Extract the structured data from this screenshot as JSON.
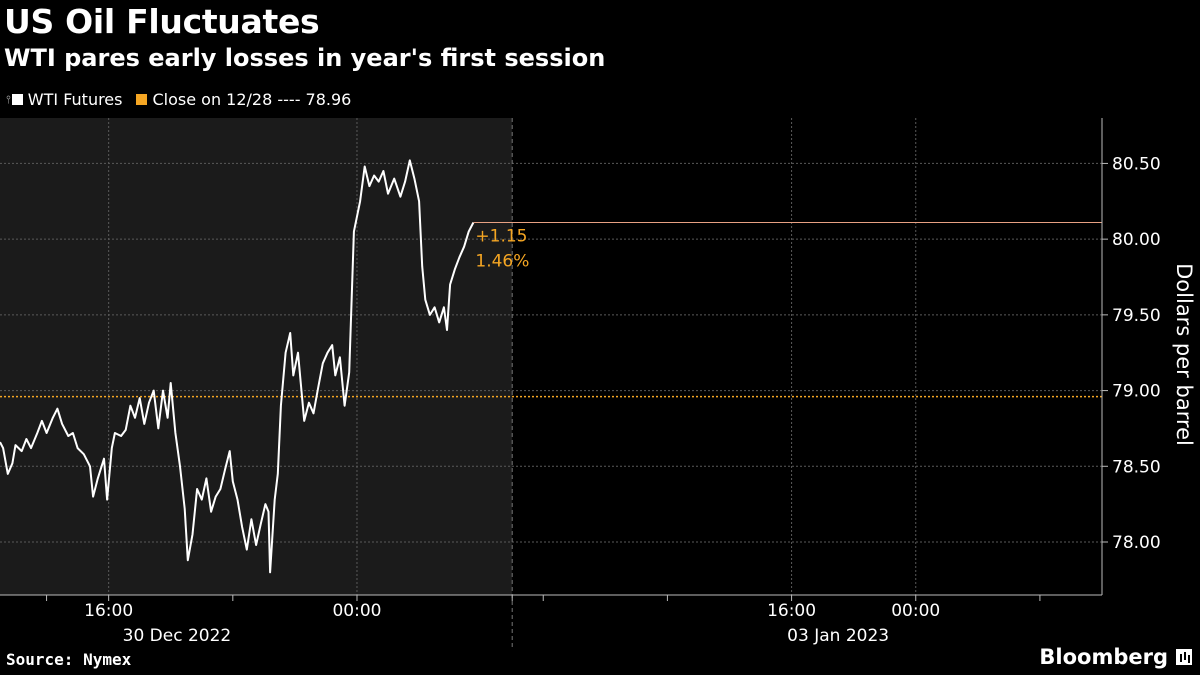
{
  "title": "US Oil Fluctuates",
  "subtitle": "WTI pares early losses in year's first session",
  "legend": {
    "series_label": "WTI Futures",
    "close_label": "Close on 12/28 ---- 78.96",
    "series_color": "#ffffff",
    "close_color": "#f5a623"
  },
  "footer": {
    "source": "Source: Nymex",
    "brand": "Bloomberg"
  },
  "chart_data": {
    "type": "line",
    "ylabel": "Dollars per barrel",
    "ylim": [
      77.65,
      80.8
    ],
    "y_ticks": [
      78.0,
      78.5,
      79.0,
      79.5,
      80.0,
      80.5
    ],
    "y_tick_labels": [
      "78.00",
      "78.50",
      "79.00",
      "79.50",
      "80.00",
      "80.50"
    ],
    "x_ticks": [
      {
        "t": 14,
        "label": ""
      },
      {
        "t": 16,
        "label": "16:00"
      },
      {
        "t": 20,
        "label": ""
      },
      {
        "t": 24,
        "label": "00:00"
      },
      {
        "t": 29,
        "label": ""
      },
      {
        "t": 30,
        "label": ""
      },
      {
        "t": 34,
        "label": ""
      },
      {
        "t": 38,
        "label": "16:00"
      },
      {
        "t": 42,
        "label": "00:00"
      },
      {
        "t": 46,
        "label": ""
      }
    ],
    "date_labels": [
      {
        "t": 18.2,
        "label": "30 Dec 2022"
      },
      {
        "t": 39.5,
        "label": "03 Jan 2023"
      }
    ],
    "shaded_range": [
      12.5,
      29
    ],
    "session_break": 29,
    "xlim": [
      12.5,
      48
    ],
    "reference_line": {
      "value": 78.96,
      "label": "Close on 12/28",
      "color": "#f5a623"
    },
    "last_value_line": {
      "value": 80.11,
      "color": "#e8a183"
    },
    "annotation": {
      "change": "+1.15",
      "percent": "1.46%",
      "color": "#f5a623"
    },
    "series": [
      {
        "name": "WTI Futures",
        "color": "#ffffff",
        "points": [
          [
            12.5,
            78.66
          ],
          [
            12.6,
            78.62
          ],
          [
            12.75,
            78.45
          ],
          [
            12.9,
            78.52
          ],
          [
            13.0,
            78.64
          ],
          [
            13.2,
            78.6
          ],
          [
            13.35,
            78.68
          ],
          [
            13.5,
            78.62
          ],
          [
            13.7,
            78.72
          ],
          [
            13.85,
            78.8
          ],
          [
            14.0,
            78.72
          ],
          [
            14.2,
            78.82
          ],
          [
            14.35,
            78.88
          ],
          [
            14.5,
            78.78
          ],
          [
            14.7,
            78.7
          ],
          [
            14.85,
            78.72
          ],
          [
            15.0,
            78.62
          ],
          [
            15.2,
            78.58
          ],
          [
            15.4,
            78.5
          ],
          [
            15.5,
            78.3
          ],
          [
            15.65,
            78.42
          ],
          [
            15.85,
            78.55
          ],
          [
            15.95,
            78.28
          ],
          [
            16.1,
            78.62
          ],
          [
            16.2,
            78.72
          ],
          [
            16.4,
            78.7
          ],
          [
            16.55,
            78.74
          ],
          [
            16.7,
            78.9
          ],
          [
            16.85,
            78.82
          ],
          [
            17.0,
            78.95
          ],
          [
            17.15,
            78.78
          ],
          [
            17.3,
            78.92
          ],
          [
            17.45,
            79.0
          ],
          [
            17.6,
            78.75
          ],
          [
            17.75,
            79.0
          ],
          [
            17.9,
            78.82
          ],
          [
            18.0,
            79.05
          ],
          [
            18.15,
            78.72
          ],
          [
            18.3,
            78.5
          ],
          [
            18.45,
            78.22
          ],
          [
            18.55,
            77.88
          ],
          [
            18.7,
            78.05
          ],
          [
            18.85,
            78.35
          ],
          [
            19.0,
            78.28
          ],
          [
            19.15,
            78.42
          ],
          [
            19.3,
            78.2
          ],
          [
            19.45,
            78.3
          ],
          [
            19.6,
            78.35
          ],
          [
            19.75,
            78.48
          ],
          [
            19.9,
            78.6
          ],
          [
            20.0,
            78.4
          ],
          [
            20.15,
            78.28
          ],
          [
            20.3,
            78.1
          ],
          [
            20.45,
            77.95
          ],
          [
            20.6,
            78.15
          ],
          [
            20.75,
            77.98
          ],
          [
            20.9,
            78.12
          ],
          [
            21.05,
            78.25
          ],
          [
            21.15,
            78.2
          ],
          [
            21.2,
            77.8
          ],
          [
            21.35,
            78.28
          ],
          [
            21.45,
            78.45
          ],
          [
            21.55,
            78.9
          ],
          [
            21.7,
            79.25
          ],
          [
            21.85,
            79.38
          ],
          [
            21.95,
            79.1
          ],
          [
            22.1,
            79.25
          ],
          [
            22.3,
            78.8
          ],
          [
            22.45,
            78.92
          ],
          [
            22.6,
            78.85
          ],
          [
            22.75,
            79.02
          ],
          [
            22.9,
            79.18
          ],
          [
            23.05,
            79.25
          ],
          [
            23.2,
            79.3
          ],
          [
            23.3,
            79.1
          ],
          [
            23.45,
            79.22
          ],
          [
            23.6,
            78.9
          ],
          [
            23.75,
            79.12
          ],
          [
            23.9,
            80.05
          ],
          [
            24.1,
            80.25
          ],
          [
            24.25,
            80.48
          ],
          [
            24.4,
            80.35
          ],
          [
            24.55,
            80.42
          ],
          [
            24.7,
            80.38
          ],
          [
            24.85,
            80.45
          ],
          [
            25.0,
            80.3
          ],
          [
            25.2,
            80.4
          ],
          [
            25.4,
            80.28
          ],
          [
            25.55,
            80.38
          ],
          [
            25.7,
            80.52
          ],
          [
            25.85,
            80.4
          ],
          [
            26.0,
            80.25
          ],
          [
            26.1,
            79.82
          ],
          [
            26.2,
            79.6
          ],
          [
            26.35,
            79.5
          ],
          [
            26.5,
            79.55
          ],
          [
            26.65,
            79.45
          ],
          [
            26.8,
            79.55
          ],
          [
            26.9,
            79.4
          ],
          [
            27.0,
            79.7
          ],
          [
            27.15,
            79.8
          ],
          [
            27.3,
            79.88
          ],
          [
            27.45,
            79.95
          ],
          [
            27.6,
            80.05
          ],
          [
            27.75,
            80.11
          ]
        ]
      }
    ]
  }
}
